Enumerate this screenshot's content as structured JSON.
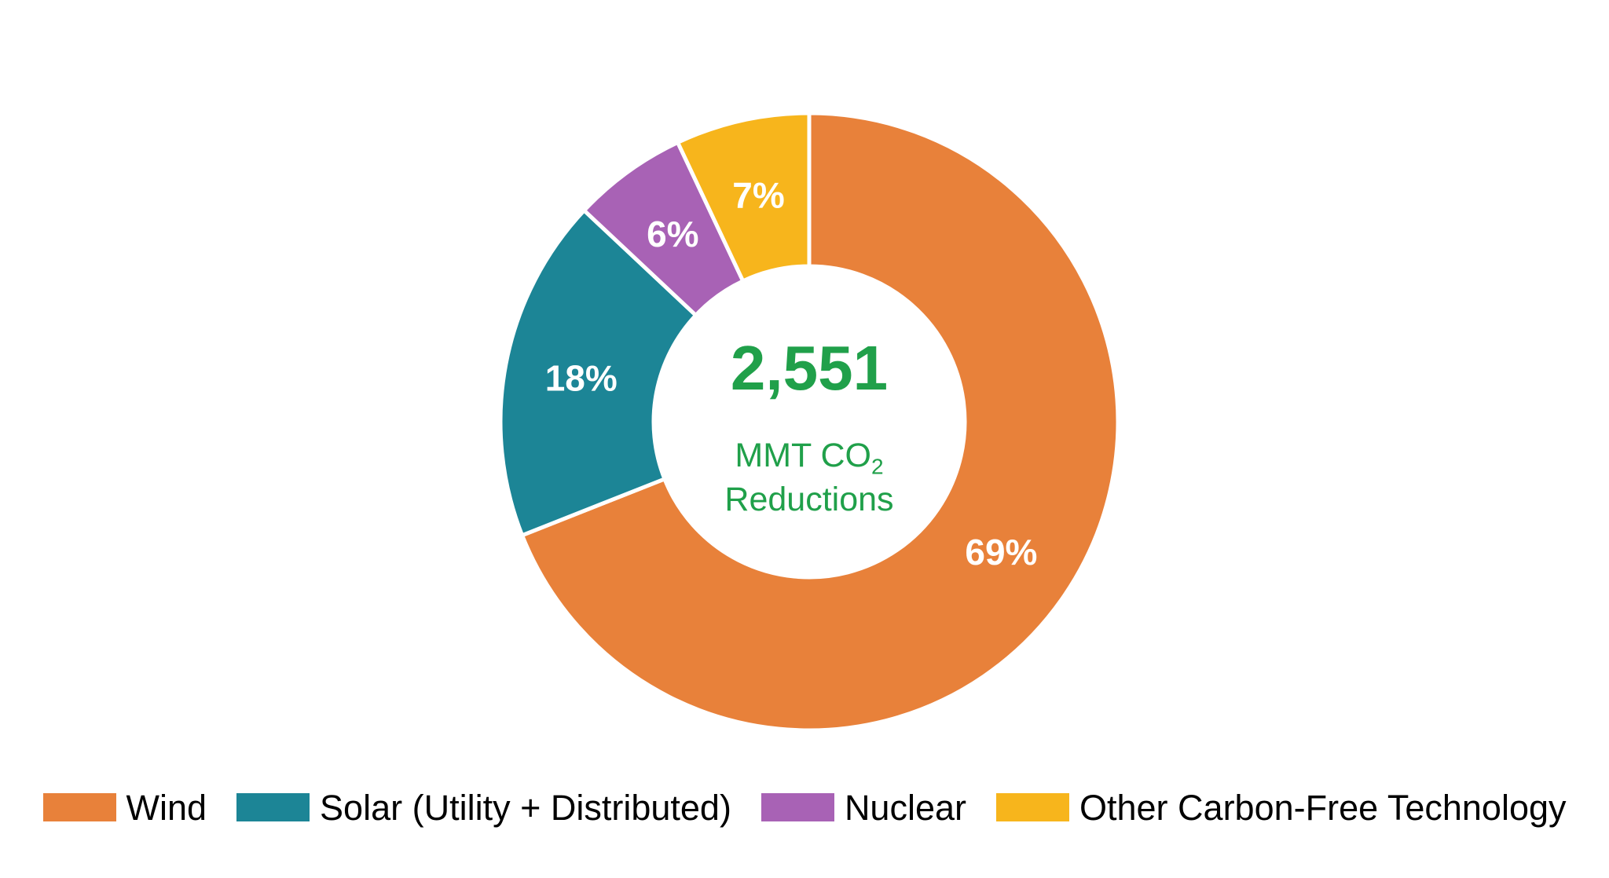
{
  "page": {
    "background_color": "#ffffff"
  },
  "chart_data": {
    "type": "pie",
    "subtype": "donut",
    "title": "",
    "series": [
      {
        "name": "Wind",
        "value": 69,
        "label": "69%",
        "color": "#E8813A"
      },
      {
        "name": "Solar (Utility + Distributed)",
        "value": 18,
        "label": "18%",
        "color": "#1C8596"
      },
      {
        "name": "Nuclear",
        "value": 6,
        "label": "6%",
        "color": "#A862B5"
      },
      {
        "name": "Other Carbon-Free Technology",
        "value": 7,
        "label": "7%",
        "color": "#F7B51C"
      }
    ],
    "value_unit": "percent",
    "start_angle_deg": 0,
    "direction": "clockwise",
    "slice_label_color": "#ffffff",
    "slice_separator_color": "#ffffff",
    "legend_position": "bottom",
    "legend_text_color": "#000000",
    "center_label": {
      "value": "2,551",
      "unit_prefix": "MMT CO",
      "unit_subscript": "2",
      "unit_line2": "Reductions",
      "color": "#20A04A"
    }
  }
}
